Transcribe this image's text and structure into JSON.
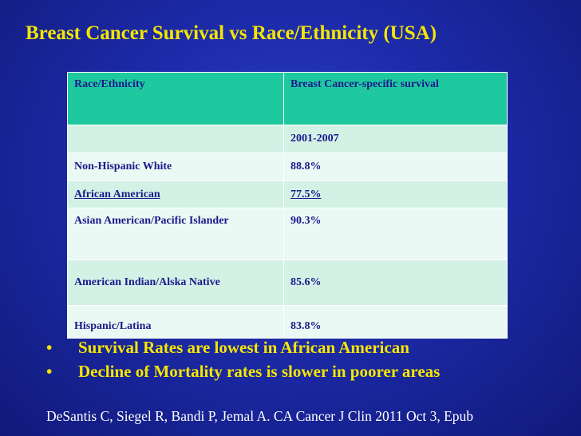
{
  "title": "Breast Cancer Survival vs Race/Ethnicity (USA)",
  "table": {
    "header": [
      "Race/Ethnicity",
      "Breast Cancer-specific survival"
    ],
    "subheader": [
      "",
      "2001-2007"
    ],
    "rows": [
      [
        "Non-Hispanic White",
        "88.8%"
      ],
      [
        "African American",
        "77.5%"
      ],
      [
        "Asian American/Pacific Islander",
        "90.3%"
      ],
      [
        "American Indian/Alska Native",
        "85.6%"
      ],
      [
        "Hispanic/Latina",
        "83.8%"
      ]
    ]
  },
  "bullets": [
    "Survival Rates are lowest in African American",
    "Decline of Mortality rates is slower in poorer areas"
  ],
  "bullet_symbol": "•",
  "citation": "DeSantis C, Siegel R, Bandi P, Jemal A. CA Cancer J Clin 2011 Oct 3, Epub",
  "colors": {
    "title": "#f5e600",
    "header_bg": "#1fc9a0",
    "cell_text": "#1a1a8c",
    "background": "#1c2aa8"
  }
}
